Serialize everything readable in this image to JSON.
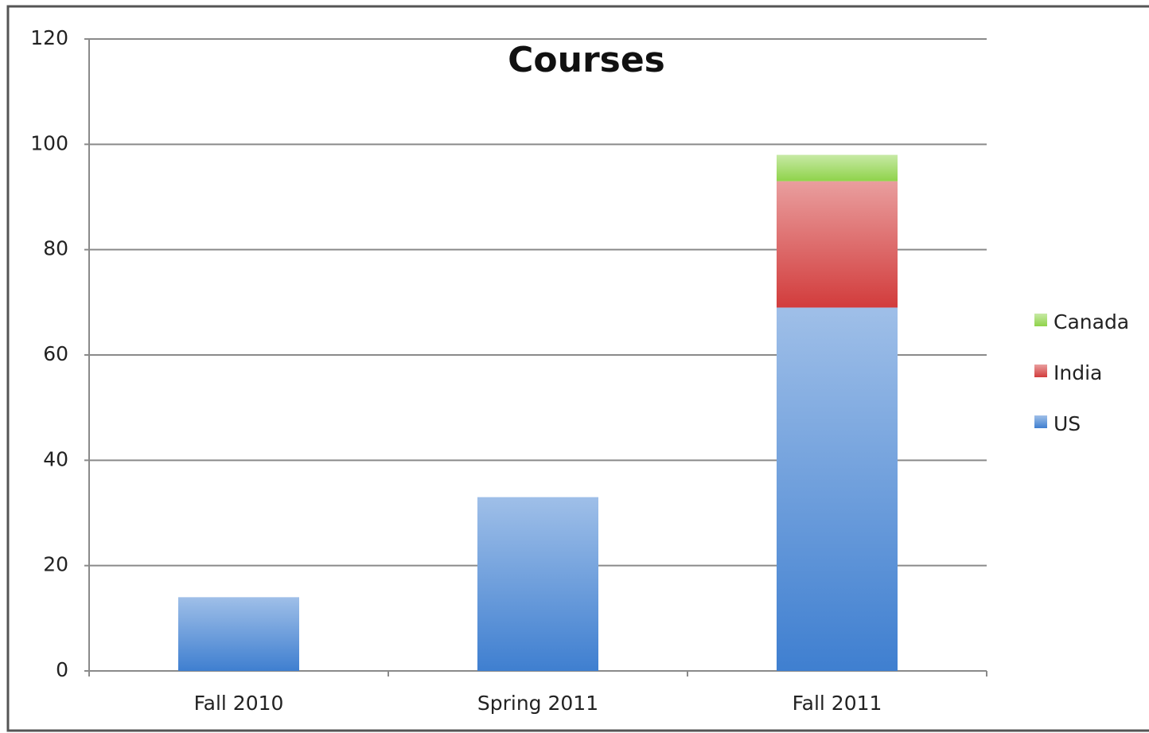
{
  "chart_data": {
    "type": "stacked-bar",
    "title": "Courses",
    "categories": [
      "Fall 2010",
      "Spring 2011",
      "Fall 2011"
    ],
    "series": [
      {
        "name": "US",
        "color": "#3f7fd0",
        "values": [
          14,
          33,
          69
        ]
      },
      {
        "name": "India",
        "color": "#d23c3c",
        "values": [
          null,
          null,
          24
        ]
      },
      {
        "name": "Canada",
        "color": "#8fd34a",
        "values": [
          null,
          null,
          5
        ]
      }
    ],
    "ylim": [
      0,
      120
    ],
    "yticks": [
      0,
      20,
      40,
      60,
      80,
      100,
      120
    ],
    "grid": true,
    "legend": "right"
  }
}
